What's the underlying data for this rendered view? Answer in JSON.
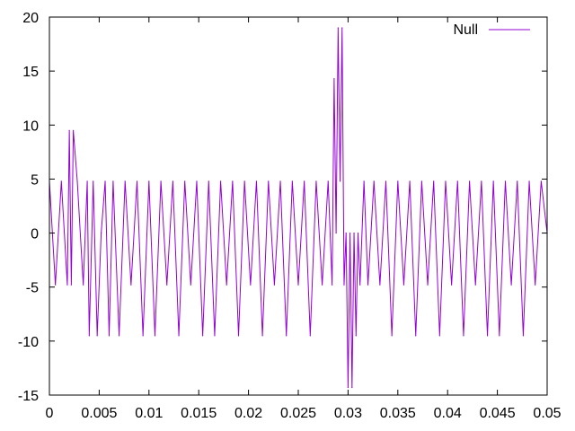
{
  "chart_data": {
    "type": "line",
    "title": "",
    "xlabel": "",
    "ylabel": "",
    "xlim": [
      0,
      0.05
    ],
    "ylim": [
      -15,
      20
    ],
    "xticks": [
      0,
      0.005,
      0.01,
      0.015,
      0.02,
      0.025,
      0.03,
      0.035,
      0.04,
      0.045,
      0.05
    ],
    "xtick_labels": [
      "0",
      "0.005",
      "0.01",
      "0.015",
      "0.02",
      "0.025",
      "0.03",
      "0.035",
      "0.04",
      "0.045",
      "0.05"
    ],
    "yticks": [
      -15,
      -10,
      -5,
      0,
      5,
      10,
      15,
      20
    ],
    "ytick_labels": [
      "-15",
      "-10",
      "-5",
      "0",
      "5",
      "10",
      "15",
      "20"
    ],
    "grid": false,
    "legend_position": "top-right",
    "line_color": "#9400d3",
    "series": [
      {
        "name": "Null",
        "color": "#9400d3",
        "x": [
          0.0,
          0.0006,
          0.0012,
          0.0018,
          0.002,
          0.0022,
          0.0024,
          0.0028,
          0.0034,
          0.0038,
          0.004,
          0.0044,
          0.0048,
          0.0052,
          0.0056,
          0.006,
          0.0064,
          0.007,
          0.0076,
          0.0082,
          0.0088,
          0.0094,
          0.01,
          0.0106,
          0.0112,
          0.0118,
          0.0124,
          0.013,
          0.0136,
          0.0142,
          0.0148,
          0.0154,
          0.016,
          0.0166,
          0.0172,
          0.0178,
          0.0184,
          0.019,
          0.0196,
          0.0202,
          0.0208,
          0.0214,
          0.022,
          0.0226,
          0.0232,
          0.0238,
          0.0244,
          0.025,
          0.0256,
          0.0262,
          0.0268,
          0.0274,
          0.028,
          0.0284,
          0.0286,
          0.0288,
          0.029,
          0.0292,
          0.0294,
          0.0296,
          0.0298,
          0.03,
          0.0302,
          0.0304,
          0.0306,
          0.0308,
          0.031,
          0.0312,
          0.0316,
          0.032,
          0.0326,
          0.0332,
          0.0338,
          0.0344,
          0.035,
          0.0356,
          0.0362,
          0.0368,
          0.0374,
          0.038,
          0.0386,
          0.0392,
          0.0398,
          0.0404,
          0.041,
          0.0416,
          0.0422,
          0.0428,
          0.0434,
          0.044,
          0.0446,
          0.0452,
          0.0458,
          0.0464,
          0.047,
          0.0476,
          0.0482,
          0.0488,
          0.0494,
          0.05
        ],
        "values": [
          4.8,
          -4.8,
          4.8,
          -4.8,
          9.5,
          -4.8,
          9.5,
          4.8,
          -4.8,
          4.8,
          -9.5,
          4.8,
          -9.5,
          0,
          4.8,
          -9.5,
          4.8,
          -9.5,
          4.8,
          -4.8,
          4.8,
          -9.5,
          4.8,
          -9.5,
          4.8,
          -4.8,
          4.8,
          -9.5,
          4.8,
          -4.8,
          4.8,
          -9.5,
          4.8,
          -9.5,
          4.8,
          -4.8,
          4.8,
          -9.5,
          4.8,
          -4.8,
          4.8,
          -9.5,
          4.8,
          -4.8,
          4.8,
          -9.5,
          4.8,
          -4.8,
          4.8,
          -9.5,
          4.8,
          -4.8,
          4.8,
          -4.8,
          14.3,
          0,
          19.0,
          4.8,
          19.0,
          -4.8,
          0,
          -14.3,
          0,
          -14.3,
          0,
          -9.5,
          0,
          -4.8,
          4.8,
          -4.8,
          4.8,
          -4.8,
          4.8,
          -9.5,
          4.8,
          -4.8,
          4.8,
          -9.5,
          4.8,
          -4.8,
          4.8,
          -9.5,
          4.8,
          -4.8,
          4.8,
          -9.5,
          4.8,
          -4.8,
          4.8,
          -9.5,
          4.8,
          -9.5,
          4.8,
          -4.8,
          4.8,
          -9.5,
          4.8,
          -4.8,
          4.8,
          0
        ]
      }
    ]
  }
}
